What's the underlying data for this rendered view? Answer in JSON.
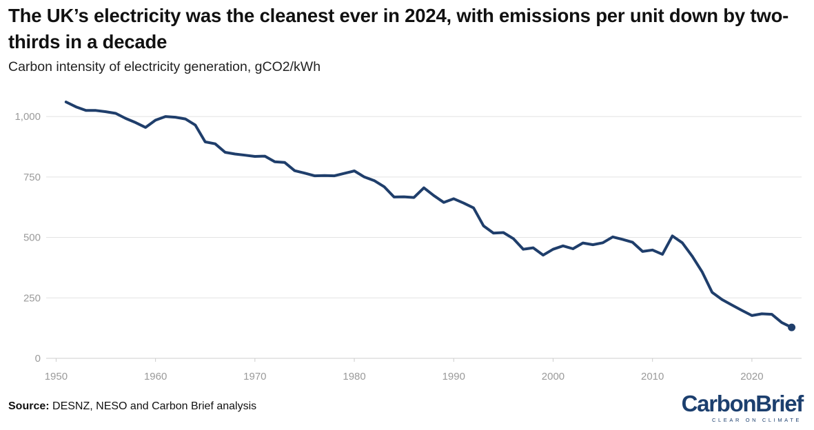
{
  "title": "The UK’s electricity was the cleanest ever in 2024, with emissions per unit down by two-thirds in a decade",
  "subtitle": "Carbon intensity of electricity generation, gCO2/kWh",
  "source": {
    "label": "Source:",
    "text": " DESNZ, NESO and Carbon Brief analysis"
  },
  "logo": {
    "text": "CarbonBrief",
    "tagline": "CLEAR ON CLIMATE"
  },
  "colors": {
    "line": "#1f3e6b",
    "grid": "#e2e2e2",
    "axis": "#cccccc",
    "ticks": "#9a9a9a",
    "logo": "#1c3f6e"
  },
  "chart_data": {
    "type": "line",
    "title": "The UK’s electricity was the cleanest ever in 2024, with emissions per unit down by two-thirds in a decade",
    "subtitle": "Carbon intensity of electricity generation, gCO2/kWh",
    "xlabel": "",
    "ylabel": "",
    "xlim": [
      1949,
      2025
    ],
    "ylim": [
      0,
      1100
    ],
    "x_ticks": [
      1950,
      1960,
      1970,
      1980,
      1990,
      2000,
      2010,
      2020
    ],
    "y_ticks": [
      0,
      250,
      500,
      750,
      1000
    ],
    "y_tick_labels": [
      "0",
      "250",
      "500",
      "750",
      "1,000"
    ],
    "grid": "horizontal",
    "end_marker": true,
    "series": [
      {
        "x": [
          1951,
          1952,
          1953,
          1954,
          1955,
          1956,
          1957,
          1958,
          1959,
          1960,
          1961,
          1962,
          1963,
          1964,
          1965,
          1966,
          1967,
          1968,
          1969,
          1970,
          1971,
          1972,
          1973,
          1974,
          1975,
          1976,
          1977,
          1978,
          1979,
          1980,
          1981,
          1982,
          1983,
          1984,
          1985,
          1986,
          1987,
          1988,
          1989,
          1990,
          1991,
          1992,
          1993,
          1994,
          1995,
          1996,
          1997,
          1998,
          1999,
          2000,
          2001,
          2002,
          2003,
          2004,
          2005,
          2006,
          2007,
          2008,
          2009,
          2010,
          2011,
          2012,
          2013,
          2014,
          2015,
          2016,
          2017,
          2018,
          2019,
          2020,
          2021,
          2022,
          2023,
          2024
        ],
        "values": [
          1060,
          1040,
          1025,
          1025,
          1020,
          1013,
          992,
          975,
          955,
          985,
          1000,
          997,
          990,
          965,
          895,
          887,
          852,
          845,
          840,
          835,
          836,
          813,
          810,
          776,
          766,
          755,
          756,
          755,
          765,
          775,
          750,
          735,
          710,
          667,
          668,
          665,
          705,
          673,
          645,
          660,
          642,
          622,
          548,
          518,
          520,
          495,
          451,
          457,
          427,
          451,
          465,
          453,
          477,
          470,
          478,
          502,
          492,
          480,
          442,
          448,
          430,
          506,
          478,
          422,
          357,
          273,
          243,
          220,
          198,
          177,
          184,
          182,
          148,
          128
        ]
      }
    ]
  }
}
